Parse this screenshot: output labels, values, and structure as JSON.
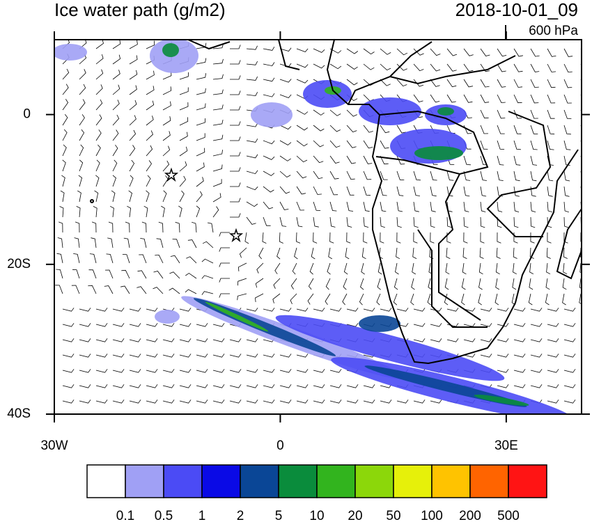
{
  "chart_data": {
    "type": "map",
    "title": "Ice water path (g/m2)",
    "time": "2018-10-01_09",
    "level": "600 hPa",
    "xlim": [
      -30,
      40
    ],
    "ylim": [
      -40,
      10
    ],
    "xticks": [
      {
        "value": -30,
        "label": "30W"
      },
      0,
      {
        "value": 30,
        "label": "30E"
      }
    ],
    "yticks": [
      0,
      {
        "value": -20,
        "label": "20S"
      },
      {
        "value": -40,
        "label": "40S"
      }
    ],
    "colorbar": {
      "levels": [
        0.1,
        0.5,
        1,
        2,
        5,
        10,
        20,
        50,
        100,
        200,
        500
      ],
      "colors": [
        "#ffffff",
        "#a0a0f5",
        "#4b4bf5",
        "#0a0ae6",
        "#0a4696",
        "#0a8c3c",
        "#32b41e",
        "#8cd70a",
        "#e6f00a",
        "#ffc300",
        "#ff6400",
        "#ff1414"
      ]
    }
  }
}
